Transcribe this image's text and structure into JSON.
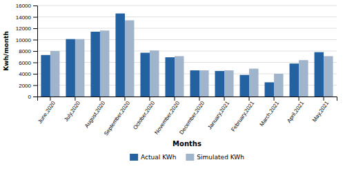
{
  "chart_data": {
    "type": "bar",
    "categories": [
      "June,2020",
      "July,2020",
      "August,2020",
      "September,2020",
      "October,2020",
      "November,2020",
      "December,2020",
      "January,2021",
      "February,2021",
      "March,2021",
      "April,2021",
      "May,2021"
    ],
    "series": [
      {
        "name": "Actual KWh",
        "color": "#2461a0",
        "values": [
          7300,
          10100,
          11400,
          14600,
          7700,
          6900,
          4600,
          4500,
          3800,
          2500,
          5800,
          7800
        ]
      },
      {
        "name": "Simulated KWh",
        "color": "#a0b4cc",
        "values": [
          8000,
          10100,
          11600,
          13400,
          8100,
          7100,
          4600,
          4600,
          4900,
          4000,
          6400,
          7100
        ]
      }
    ],
    "xlabel": "Months",
    "ylabel": "Kwh/month",
    "ylim": [
      0,
      16000
    ],
    "yticks": [
      0,
      2000,
      4000,
      6000,
      8000,
      10000,
      12000,
      14000,
      16000
    ],
    "grid": true,
    "legend": "bottom"
  }
}
